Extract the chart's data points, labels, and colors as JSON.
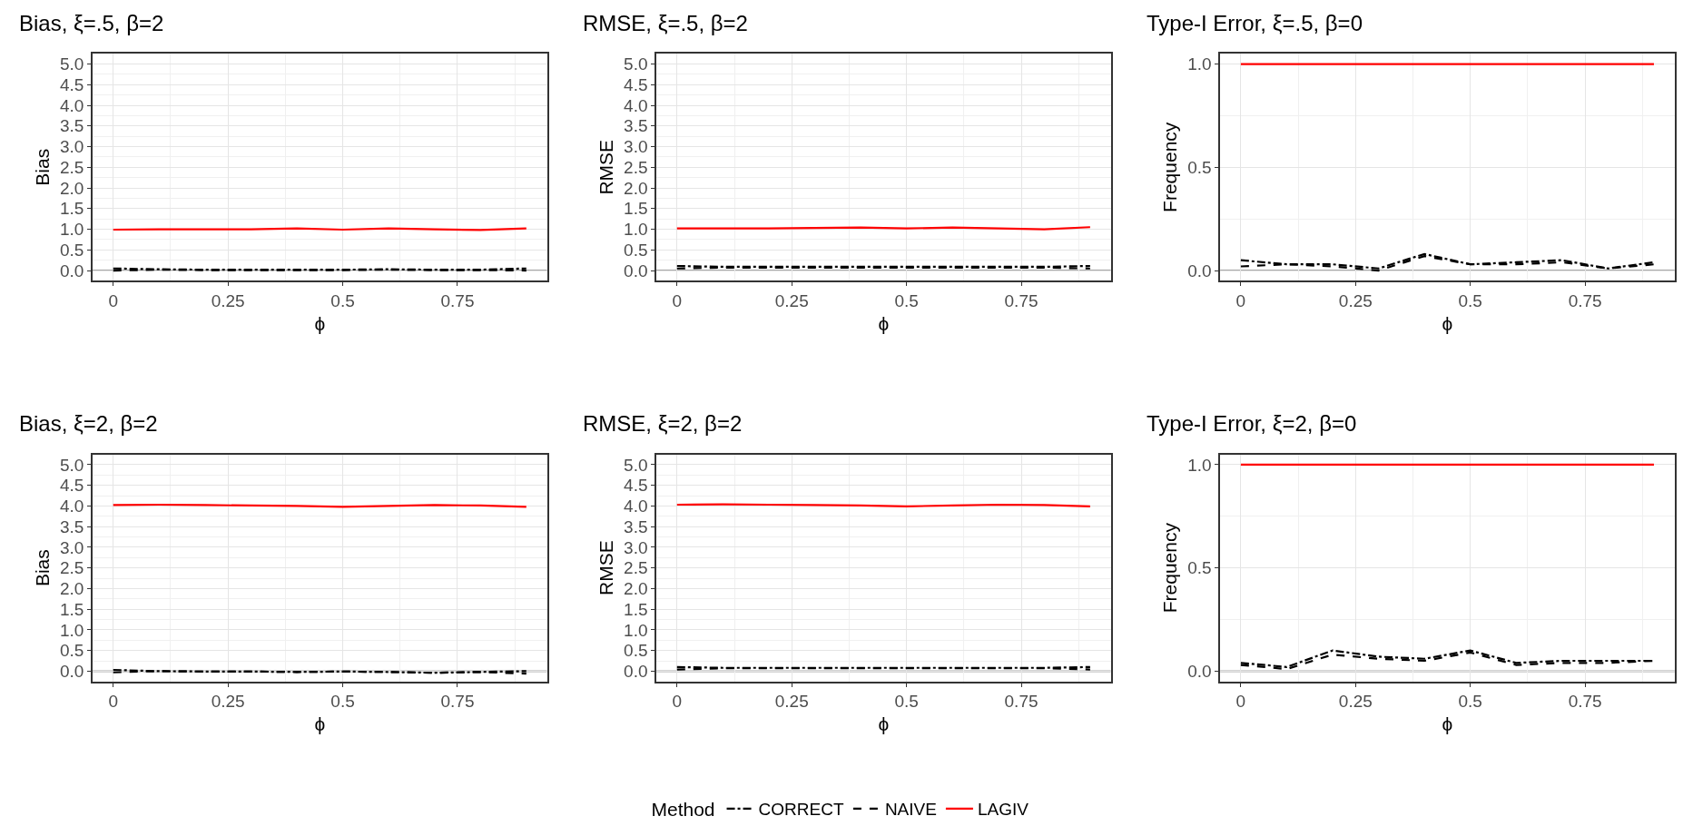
{
  "chart_data": [
    {
      "type": "line",
      "title": "Bias, ξ=.5, β=2",
      "xlabel": "ϕ",
      "ylabel": "Bias",
      "legend_title": "Method",
      "legend": "bottom",
      "grid": true,
      "x": [
        0,
        0.1,
        0.2,
        0.3,
        0.4,
        0.5,
        0.6,
        0.7,
        0.8,
        0.9
      ],
      "xlim": [
        -0.045,
        0.945
      ],
      "xticks": [
        0,
        0.25,
        0.5,
        0.75
      ],
      "ylim": [
        -0.25,
        5.25
      ],
      "yticks": [
        {
          "value": 0,
          "label": "0.0"
        },
        0.5,
        {
          "value": 1,
          "label": "1.0"
        },
        1.5,
        {
          "value": 2,
          "label": "2.0"
        },
        2.5,
        {
          "value": 3,
          "label": "3.0"
        },
        3.5,
        {
          "value": 4,
          "label": "4.0"
        },
        4.5,
        {
          "value": 5,
          "label": "5.0"
        }
      ],
      "ref_lines": [
        {
          "axis": "y",
          "value": 0,
          "color": "#a6a6a6"
        }
      ],
      "series": [
        {
          "name": "CORRECT",
          "color": "#000000",
          "line_style": "dashdot",
          "values": [
            0.05,
            0.03,
            0.02,
            0.02,
            0.02,
            0.02,
            0.03,
            0.02,
            0.02,
            0.05
          ]
        },
        {
          "name": "NAIVE",
          "color": "#000000",
          "line_style": "dashed",
          "values": [
            0.0,
            0.02,
            0.01,
            0.01,
            0.01,
            0.01,
            0.02,
            0.01,
            0.01,
            0.0
          ]
        },
        {
          "name": "LAGIV",
          "color": "#ff0000",
          "line_style": "solid",
          "values": [
            0.99,
            1.0,
            1.0,
            1.0,
            1.02,
            0.99,
            1.02,
            1.0,
            0.98,
            1.02
          ]
        }
      ]
    },
    {
      "type": "line",
      "title": "RMSE, ξ=.5, β=2",
      "xlabel": "ϕ",
      "ylabel": "RMSE",
      "grid": true,
      "x": [
        0,
        0.1,
        0.2,
        0.3,
        0.4,
        0.5,
        0.6,
        0.7,
        0.8,
        0.9
      ],
      "xlim": [
        -0.045,
        0.945
      ],
      "xticks": [
        0,
        0.25,
        0.5,
        0.75
      ],
      "ylim": [
        -0.25,
        5.25
      ],
      "yticks": [
        {
          "value": 0,
          "label": "0.0"
        },
        0.5,
        {
          "value": 1,
          "label": "1.0"
        },
        1.5,
        {
          "value": 2,
          "label": "2.0"
        },
        2.5,
        {
          "value": 3,
          "label": "3.0"
        },
        3.5,
        {
          "value": 4,
          "label": "4.0"
        },
        4.5,
        {
          "value": 5,
          "label": "5.0"
        }
      ],
      "ref_lines": [
        {
          "axis": "y",
          "value": 0,
          "color": "#a6a6a6"
        }
      ],
      "series": [
        {
          "color": "#000000",
          "line_style": "dashdot",
          "values": [
            0.11,
            0.09,
            0.09,
            0.09,
            0.09,
            0.09,
            0.09,
            0.09,
            0.09,
            0.11
          ]
        },
        {
          "color": "#000000",
          "line_style": "dashed",
          "values": [
            0.05,
            0.07,
            0.07,
            0.07,
            0.07,
            0.07,
            0.07,
            0.07,
            0.07,
            0.05
          ]
        },
        {
          "color": "#ff0000",
          "line_style": "solid",
          "values": [
            1.02,
            1.02,
            1.02,
            1.03,
            1.04,
            1.02,
            1.04,
            1.02,
            1.0,
            1.05
          ]
        }
      ]
    },
    {
      "type": "line",
      "title": "Type-I Error, ξ=.5, β=0",
      "xlabel": "ϕ",
      "ylabel": "Frequency",
      "grid": true,
      "x": [
        0,
        0.1,
        0.2,
        0.3,
        0.4,
        0.5,
        0.6,
        0.7,
        0.8,
        0.9
      ],
      "xlim": [
        -0.045,
        0.945
      ],
      "xticks": [
        0,
        0.25,
        0.5,
        0.75
      ],
      "ylim": [
        -0.05,
        1.05
      ],
      "yticks": [
        {
          "value": 0,
          "label": "0.0"
        },
        0.5,
        {
          "value": 1,
          "label": "1.0"
        }
      ],
      "ref_lines": [
        {
          "axis": "y",
          "value": 0,
          "color": "#a6a6a6"
        }
      ],
      "series": [
        {
          "color": "#000000",
          "line_style": "dashdot",
          "values": [
            0.05,
            0.03,
            0.03,
            0.01,
            0.08,
            0.03,
            0.04,
            0.05,
            0.01,
            0.04
          ]
        },
        {
          "color": "#000000",
          "line_style": "dashed",
          "values": [
            0.02,
            0.03,
            0.02,
            0.0,
            0.07,
            0.03,
            0.03,
            0.04,
            0.01,
            0.03
          ]
        },
        {
          "color": "#ff0000",
          "line_style": "solid",
          "values": [
            1,
            1,
            1,
            1,
            1,
            1,
            1,
            1,
            1,
            1
          ]
        }
      ]
    },
    {
      "type": "line",
      "title": "Bias, ξ=2, β=2",
      "xlabel": "ϕ",
      "ylabel": "Bias",
      "grid": true,
      "x": [
        0,
        0.1,
        0.2,
        0.3,
        0.4,
        0.5,
        0.6,
        0.7,
        0.8,
        0.9
      ],
      "xlim": [
        -0.045,
        0.945
      ],
      "xticks": [
        0,
        0.25,
        0.5,
        0.75
      ],
      "ylim": [
        -0.25,
        5.25
      ],
      "yticks": [
        {
          "value": 0,
          "label": "0.0"
        },
        0.5,
        {
          "value": 1,
          "label": "1.0"
        },
        1.5,
        {
          "value": 2,
          "label": "2.0"
        },
        2.5,
        {
          "value": 3,
          "label": "3.0"
        },
        3.5,
        {
          "value": 4,
          "label": "4.0"
        },
        4.5,
        {
          "value": 5,
          "label": "5.0"
        }
      ],
      "ref_lines": [
        {
          "axis": "y",
          "value": 0,
          "color": "#a6a6a6"
        }
      ],
      "series": [
        {
          "color": "#000000",
          "line_style": "dashdot",
          "values": [
            0.03,
            0.0,
            -0.01,
            -0.01,
            -0.02,
            -0.01,
            -0.02,
            -0.04,
            -0.02,
            0.0
          ]
        },
        {
          "color": "#000000",
          "line_style": "dashed",
          "values": [
            -0.03,
            0.0,
            -0.01,
            -0.01,
            -0.02,
            -0.01,
            -0.02,
            -0.04,
            -0.02,
            -0.06
          ]
        },
        {
          "color": "#ff0000",
          "line_style": "solid",
          "values": [
            4.02,
            4.03,
            4.02,
            4.01,
            4.0,
            3.98,
            4.0,
            4.02,
            4.01,
            3.98
          ]
        }
      ]
    },
    {
      "type": "line",
      "title": "RMSE, ξ=2, β=2",
      "xlabel": "ϕ",
      "ylabel": "RMSE",
      "grid": true,
      "x": [
        0,
        0.1,
        0.2,
        0.3,
        0.4,
        0.5,
        0.6,
        0.7,
        0.8,
        0.9
      ],
      "xlim": [
        -0.045,
        0.945
      ],
      "xticks": [
        0,
        0.25,
        0.5,
        0.75
      ],
      "ylim": [
        -0.25,
        5.25
      ],
      "yticks": [
        {
          "value": 0,
          "label": "0.0"
        },
        0.5,
        {
          "value": 1,
          "label": "1.0"
        },
        1.5,
        {
          "value": 2,
          "label": "2.0"
        },
        2.5,
        {
          "value": 3,
          "label": "3.0"
        },
        3.5,
        {
          "value": 4,
          "label": "4.0"
        },
        4.5,
        {
          "value": 5,
          "label": "5.0"
        }
      ],
      "ref_lines": [
        {
          "axis": "y",
          "value": 0,
          "color": "#a6a6a6"
        }
      ],
      "series": [
        {
          "color": "#000000",
          "line_style": "dashdot",
          "values": [
            0.1,
            0.08,
            0.08,
            0.08,
            0.08,
            0.08,
            0.08,
            0.08,
            0.08,
            0.1
          ]
        },
        {
          "color": "#000000",
          "line_style": "dashed",
          "values": [
            0.04,
            0.07,
            0.07,
            0.07,
            0.07,
            0.07,
            0.07,
            0.07,
            0.07,
            0.04
          ]
        },
        {
          "color": "#ff0000",
          "line_style": "solid",
          "values": [
            4.03,
            4.04,
            4.03,
            4.02,
            4.01,
            3.99,
            4.01,
            4.03,
            4.02,
            3.99
          ]
        }
      ]
    },
    {
      "type": "line",
      "title": "Type-I Error, ξ=2, β=0",
      "xlabel": "ϕ",
      "ylabel": "Frequency",
      "grid": true,
      "x": [
        0,
        0.1,
        0.2,
        0.3,
        0.4,
        0.5,
        0.6,
        0.7,
        0.8,
        0.9
      ],
      "xlim": [
        -0.045,
        0.945
      ],
      "xticks": [
        0,
        0.25,
        0.5,
        0.75
      ],
      "ylim": [
        -0.05,
        1.05
      ],
      "yticks": [
        {
          "value": 0,
          "label": "0.0"
        },
        0.5,
        {
          "value": 1,
          "label": "1.0"
        }
      ],
      "ref_lines": [
        {
          "axis": "y",
          "value": 0,
          "color": "#a6a6a6"
        }
      ],
      "series": [
        {
          "color": "#000000",
          "line_style": "dashdot",
          "values": [
            0.04,
            0.02,
            0.1,
            0.07,
            0.06,
            0.1,
            0.04,
            0.05,
            0.05,
            0.05
          ]
        },
        {
          "color": "#000000",
          "line_style": "dashed",
          "values": [
            0.03,
            0.01,
            0.08,
            0.06,
            0.05,
            0.09,
            0.03,
            0.04,
            0.04,
            0.05
          ]
        },
        {
          "color": "#ff0000",
          "line_style": "solid",
          "values": [
            1,
            1,
            1,
            1,
            1,
            1,
            1,
            1,
            1,
            1
          ]
        }
      ]
    }
  ]
}
